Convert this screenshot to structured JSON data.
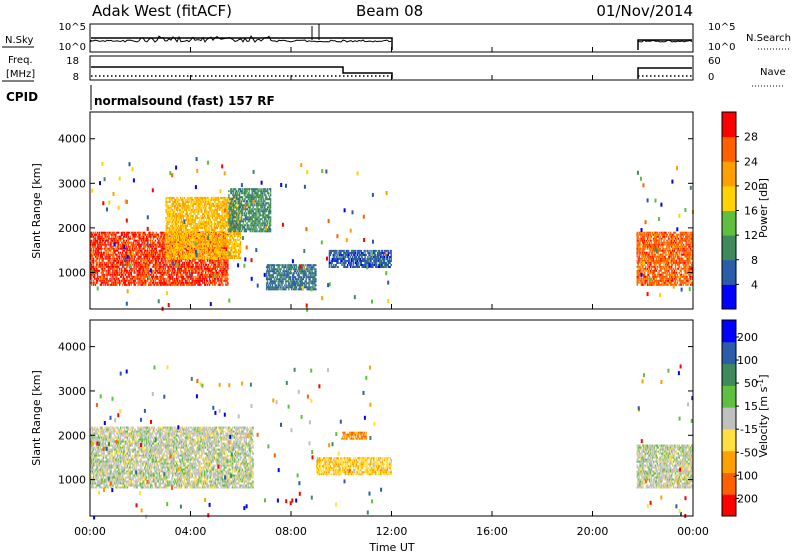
{
  "header": {
    "station": "Adak West (fitACF)",
    "beam": "Beam 08",
    "date": "01/Nov/2014"
  },
  "noise_panel": {
    "left_label": "N.Sky",
    "left_ticks": [
      "10^5",
      "10^0"
    ],
    "right_ticks": [
      "10^5",
      "10^0"
    ],
    "right_label": "N.Search"
  },
  "freq_panel": {
    "left_label_1": "Freq.",
    "left_label_2": "[MHz]",
    "left_ticks": [
      "18",
      "8"
    ],
    "right_ticks": [
      "60",
      "0"
    ],
    "right_label": "Nave"
  },
  "cpid": {
    "label": "CPID",
    "text": "normalsound (fast) 157 RF"
  },
  "colors": {
    "power_scale": [
      "#0000ff",
      "#2a5caa",
      "#3f8a5a",
      "#5fbf3f",
      "#ffd200",
      "#ffa000",
      "#ff6000",
      "#ff0000"
    ],
    "velocity_scale": [
      "#ff0000",
      "#ff6000",
      "#ffa000",
      "#ffe040",
      "#c0c0c0",
      "#5fbf3f",
      "#3f8a5a",
      "#2a5caa",
      "#0000ff"
    ]
  },
  "chart_data": [
    {
      "type": "heatmap",
      "name": "power",
      "ylabel": "Slant Range [km]",
      "ylim": [
        180,
        4600
      ],
      "yticks": [
        "1000",
        "2000",
        "3000",
        "4000"
      ],
      "colorbar_label": "Power [dB]",
      "colorbar_ticks": [
        "4",
        "8",
        "12",
        "16",
        "20",
        "24",
        "28"
      ],
      "colorbar_range": [
        0,
        32
      ],
      "data_gap_hours": [
        12.0,
        21.75
      ],
      "echo_regions": [
        {
          "t0": 0.0,
          "t1": 5.5,
          "r0": 700,
          "r1": 1900,
          "value": 28
        },
        {
          "t0": 3.0,
          "t1": 6.0,
          "r0": 1300,
          "r1": 2700,
          "value": 20
        },
        {
          "t0": 5.5,
          "t1": 7.2,
          "r0": 1900,
          "r1": 2900,
          "value": 10
        },
        {
          "t0": 7.0,
          "t1": 9.0,
          "r0": 600,
          "r1": 1200,
          "value": 8
        },
        {
          "t0": 9.5,
          "t1": 12.0,
          "r0": 1100,
          "r1": 1500,
          "value": 6
        },
        {
          "t0": 21.75,
          "t1": 24.0,
          "r0": 700,
          "r1": 1900,
          "value": 26
        }
      ]
    },
    {
      "type": "heatmap",
      "name": "velocity",
      "ylabel": "Slant Range [km]",
      "ylim": [
        180,
        4600
      ],
      "yticks": [
        "1000",
        "2000",
        "3000",
        "4000"
      ],
      "colorbar_label": "Velocity [m s^-1]",
      "colorbar_ticks": [
        "200",
        "100",
        "50",
        "15",
        "-15",
        "-50",
        "-100",
        "-200"
      ],
      "colorbar_range": [
        -250,
        250
      ],
      "data_gap_hours": [
        12.0,
        21.75
      ],
      "echo_regions": [
        {
          "t0": 0.0,
          "t1": 6.5,
          "r0": 800,
          "r1": 2200,
          "value": 0
        },
        {
          "t0": 9.0,
          "t1": 12.0,
          "r0": 1100,
          "r1": 1500,
          "value": -70
        },
        {
          "t0": 10.0,
          "t1": 11.0,
          "r0": 1900,
          "r1": 2100,
          "value": -120
        },
        {
          "t0": 21.75,
          "t1": 24.0,
          "r0": 800,
          "r1": 1800,
          "value": 0
        }
      ]
    }
  ],
  "xaxis": {
    "ticks": [
      "00:00",
      "04:00",
      "08:00",
      "12:00",
      "16:00",
      "20:00",
      "00:00"
    ],
    "label": "Time UT",
    "range_hours": [
      0,
      24
    ]
  }
}
